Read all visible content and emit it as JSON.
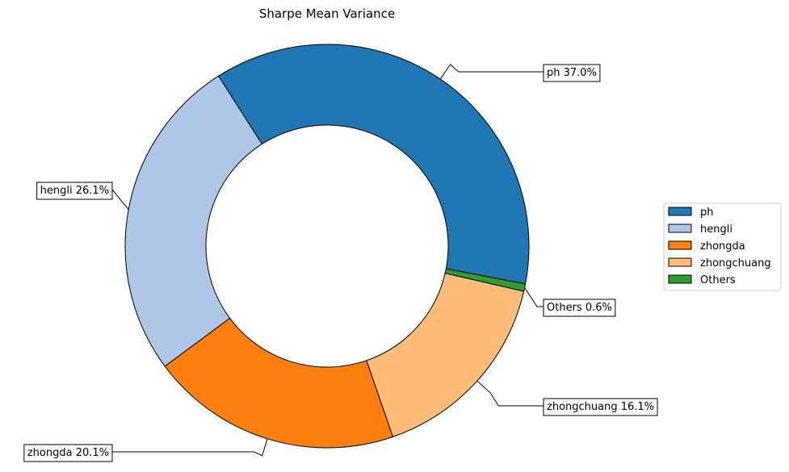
{
  "chart_data": {
    "type": "pie",
    "title": "Sharpe Mean Variance",
    "donut": true,
    "slices": [
      {
        "name": "ph",
        "value": 37.0,
        "label": "ph 37.0%",
        "color": "#1f77b4"
      },
      {
        "name": "hengli",
        "value": 26.1,
        "label": "hengli 26.1%",
        "color": "#aec7e8"
      },
      {
        "name": "zhongda",
        "value": 20.1,
        "label": "zhongda 20.1%",
        "color": "#ff7f0e"
      },
      {
        "name": "zhongchuang",
        "value": 16.1,
        "label": "zhongchuang 16.1%",
        "color": "#ffbb78"
      },
      {
        "name": "Others",
        "value": 0.6,
        "label": "Others 0.6%",
        "color": "#2ca02c"
      }
    ],
    "legend": [
      "ph",
      "hengli",
      "zhongda",
      "zhongchuang",
      "Others"
    ],
    "legend_position": "right"
  }
}
